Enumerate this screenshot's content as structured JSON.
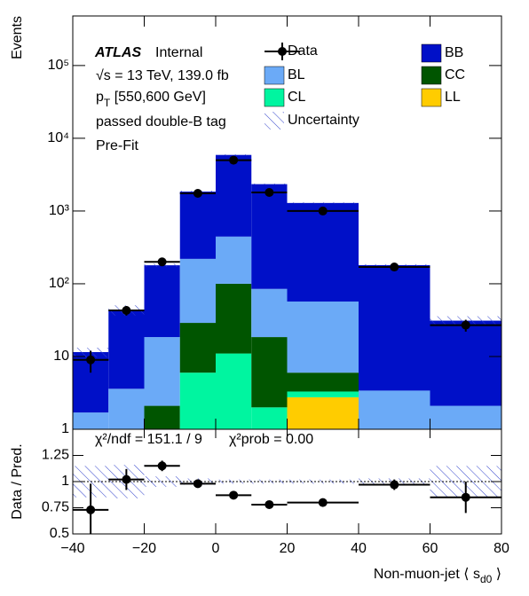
{
  "chart_data": {
    "type": "stacked_histogram",
    "bins": [
      -40,
      -30,
      -20,
      -10,
      0,
      10,
      20,
      40,
      60,
      80
    ],
    "series": [
      {
        "name": "LL",
        "color": "#ffcc00",
        "values": [
          0,
          0,
          0,
          0,
          0,
          0,
          2.75,
          0,
          0
        ]
      },
      {
        "name": "CL",
        "color": "#00f5a0",
        "values": [
          0,
          0,
          0,
          6,
          11,
          2,
          0.55,
          0,
          0
        ]
      },
      {
        "name": "CC",
        "color": "#005500",
        "values": [
          0,
          0,
          2.1,
          23,
          89,
          16.5,
          2.7,
          0,
          0
        ]
      },
      {
        "name": "BL",
        "color": "#6baaf7",
        "values": [
          1.7,
          3.6,
          16.4,
          191,
          345,
          66.5,
          51,
          3.4,
          2.1
        ]
      },
      {
        "name": "BB",
        "color": "#0010c8",
        "values": [
          9.8,
          40,
          161,
          1630,
          5455,
          2255,
          1233,
          177,
          29
        ]
      }
    ],
    "data": {
      "name": "Data",
      "values": [
        9,
        43,
        200,
        1750,
        5000,
        1800,
        1000,
        170,
        27
      ],
      "errors": [
        3,
        6.5,
        14,
        42,
        71,
        42,
        32,
        13,
        5
      ]
    },
    "uncertainty": {
      "name": "Uncertainty",
      "values": [
        0.15,
        0.16,
        0.05,
        0.03,
        0.02,
        0.02,
        0.02,
        0.03,
        0.15
      ]
    },
    "log_y": true,
    "ylim": [
      1,
      480000
    ],
    "yticks": [
      1,
      10,
      {
        "value": 100,
        "label": "10²"
      },
      {
        "value": 1000,
        "label": "10³"
      },
      {
        "value": 10000,
        "label": "10⁴"
      },
      {
        "value": 100000,
        "label": "10⁵"
      }
    ],
    "xlim": [
      -40,
      80
    ],
    "xticks": [
      {
        "value": -40,
        "label": "−40"
      },
      {
        "value": -20,
        "label": "−20"
      },
      0,
      20,
      40,
      60,
      80
    ],
    "ylabel": "Events",
    "xlabel": [
      "Non-muon-jet  ⟨ s",
      "d0",
      " ⟩"
    ],
    "ratio": {
      "ylabel": "Data / Pred.",
      "ylim": [
        0.5,
        1.5
      ],
      "yticks": [
        0.5,
        0.75,
        1,
        1.25
      ],
      "values": [
        0.73,
        1.02,
        1.15,
        0.98,
        0.87,
        0.78,
        0.8,
        0.97,
        0.85
      ],
      "errors": [
        0.25,
        0.1,
        0.05,
        0.02,
        0.02,
        0.02,
        0.03,
        0.05,
        0.15
      ]
    },
    "annotations": {
      "experiment": "ATLAS",
      "status": "Internal",
      "energy": "√s = 13 TeV, 139.0 fb",
      "pt_range": [
        "p",
        "T",
        " [550,600 GeV]"
      ],
      "selection": "passed double-B tag",
      "stage": "Pre-Fit",
      "chi2_ndf": "χ²/ndf = 151.1 / 9",
      "chi2_prob": "χ²prob = 0.00"
    }
  }
}
